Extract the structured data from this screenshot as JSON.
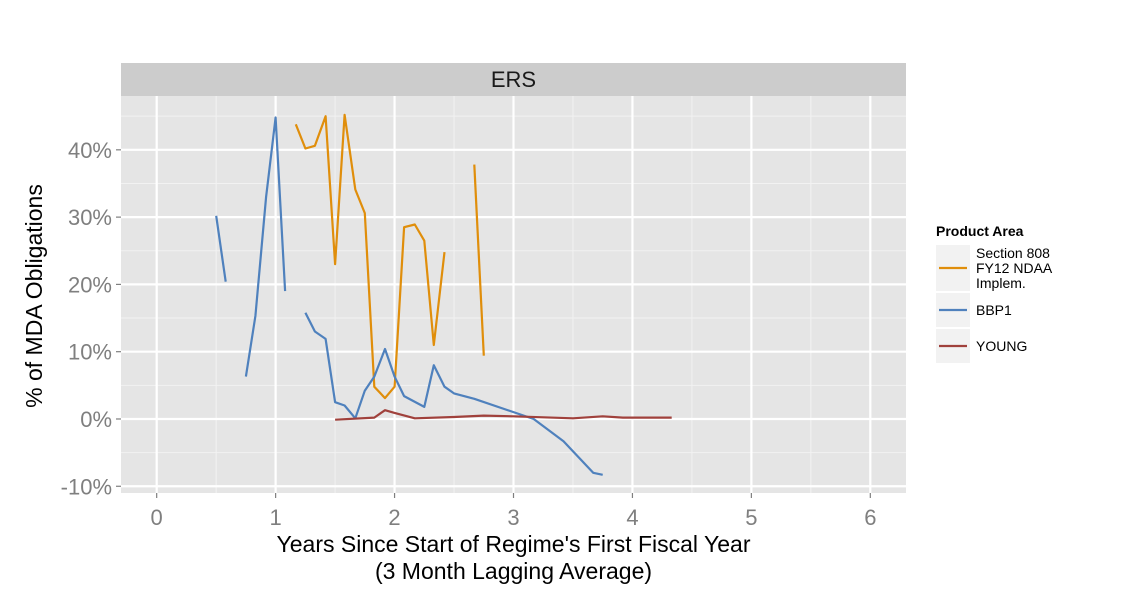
{
  "chart_data": {
    "type": "line",
    "facet_label": "ERS",
    "xlabel": "Years Since Start of Regime's First Fiscal Year",
    "xlabel_sub": "(3 Month Lagging Average)",
    "ylabel": "% of MDA Obligations",
    "xlim": [
      -0.3,
      6.3
    ],
    "ylim": [
      -0.11,
      0.48
    ],
    "x_ticks": [
      0,
      1,
      2,
      3,
      4,
      5,
      6
    ],
    "x_tick_labels": [
      "0",
      "1",
      "2",
      "3",
      "4",
      "5",
      "6"
    ],
    "y_ticks": [
      -0.1,
      0,
      0.1,
      0.2,
      0.3,
      0.4
    ],
    "y_tick_labels": [
      "-10%",
      "0%",
      "10%",
      "20%",
      "30%",
      "40%"
    ],
    "grid": true,
    "legend": {
      "title": "Product Area",
      "position": "right"
    },
    "series": [
      {
        "name": "Section 808 FY12 NDAA Implem.",
        "name_lines": [
          "Section 808",
          "FY12 NDAA",
          "Implem."
        ],
        "color": "#E08E0B",
        "segments": [
          [
            [
              1.17,
              0.438
            ],
            [
              1.25,
              0.402
            ],
            [
              1.33,
              0.406
            ],
            [
              1.42,
              0.45
            ],
            [
              1.5,
              0.23
            ],
            [
              1.58,
              0.452
            ],
            [
              1.67,
              0.341
            ],
            [
              1.75,
              0.306
            ],
            [
              1.83,
              0.048
            ],
            [
              1.92,
              0.031
            ],
            [
              2.0,
              0.048
            ],
            [
              2.08,
              0.285
            ],
            [
              2.17,
              0.289
            ],
            [
              2.25,
              0.265
            ],
            [
              2.33,
              0.11
            ],
            [
              2.42,
              0.248
            ]
          ],
          [
            [
              2.67,
              0.378
            ],
            [
              2.75,
              0.094
            ]
          ]
        ]
      },
      {
        "name": "BBP1",
        "name_lines": [
          "BBP1"
        ],
        "color": "#4F81BD",
        "segments": [
          [
            [
              0.5,
              0.302
            ],
            [
              0.58,
              0.204
            ]
          ],
          [
            [
              0.75,
              0.063
            ],
            [
              0.83,
              0.153
            ],
            [
              0.92,
              0.33
            ],
            [
              1.0,
              0.448
            ],
            [
              1.08,
              0.19
            ]
          ],
          [
            [
              1.25,
              0.158
            ],
            [
              1.33,
              0.13
            ],
            [
              1.42,
              0.119
            ],
            [
              1.5,
              0.025
            ],
            [
              1.58,
              0.02
            ],
            [
              1.67,
              0.001
            ],
            [
              1.75,
              0.042
            ],
            [
              1.83,
              0.063
            ],
            [
              1.92,
              0.104
            ],
            [
              2.0,
              0.063
            ],
            [
              2.08,
              0.034
            ],
            [
              2.25,
              0.018
            ],
            [
              2.33,
              0.08
            ],
            [
              2.42,
              0.048
            ],
            [
              2.5,
              0.038
            ],
            [
              2.67,
              0.03
            ],
            [
              3.17,
              0.0
            ],
            [
              3.42,
              -0.033
            ],
            [
              3.67,
              -0.08
            ],
            [
              3.75,
              -0.083
            ]
          ]
        ]
      },
      {
        "name": "YOUNG",
        "name_lines": [
          "YOUNG"
        ],
        "color": "#A0413C",
        "segments": [
          [
            [
              1.5,
              -0.001
            ],
            [
              1.83,
              0.002
            ],
            [
              1.92,
              0.013
            ],
            [
              2.0,
              0.009
            ],
            [
              2.17,
              0.001
            ],
            [
              2.5,
              0.003
            ],
            [
              2.75,
              0.005
            ],
            [
              3.0,
              0.004
            ],
            [
              3.5,
              0.001
            ],
            [
              3.75,
              0.004
            ],
            [
              3.92,
              0.002
            ],
            [
              4.33,
              0.002
            ]
          ]
        ]
      }
    ]
  }
}
